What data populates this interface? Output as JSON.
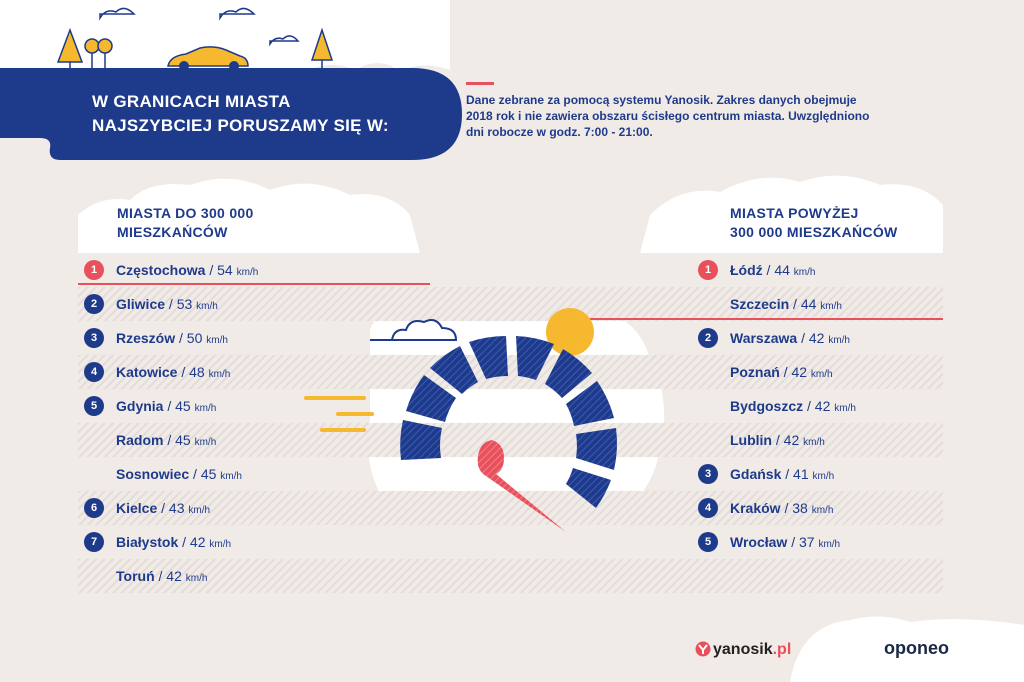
{
  "header": {
    "title_line1": "W GRANICACH MIASTA",
    "title_line2": "NAJSZYBCIEJ PORUSZAMY SIĘ W:",
    "note": "Dane zebrane za pomocą systemu Yanosik. Zakres danych obejmuje 2018 rok i nie zawiera obszaru ścisłego centrum miasta. Uwzględniono dni robocze w godz. 7:00 - 21:00."
  },
  "colors": {
    "navy": "#1e3a8a",
    "red": "#e8505b",
    "yellow": "#f5b82e",
    "background": "#f1ebe8"
  },
  "left_column": {
    "heading_line1": "MIASTA DO 300 000",
    "heading_line2": "MIESZKAŃCÓW",
    "rows": [
      {
        "rank": "1",
        "city": "Częstochowa",
        "value": "54",
        "unit": "km/h"
      },
      {
        "rank": "2",
        "city": "Gliwice",
        "value": "53",
        "unit": "km/h"
      },
      {
        "rank": "3",
        "city": "Rzeszów",
        "value": "50",
        "unit": "km/h"
      },
      {
        "rank": "4",
        "city": "Katowice",
        "value": "48",
        "unit": "km/h"
      },
      {
        "rank": "5",
        "city": "Gdynia",
        "value": "45",
        "unit": "km/h"
      },
      {
        "rank": "",
        "city": "Radom",
        "value": "45",
        "unit": "km/h"
      },
      {
        "rank": "",
        "city": "Sosnowiec",
        "value": "45",
        "unit": "km/h"
      },
      {
        "rank": "6",
        "city": "Kielce",
        "value": "43",
        "unit": "km/h"
      },
      {
        "rank": "7",
        "city": "Białystok",
        "value": "42",
        "unit": "km/h"
      },
      {
        "rank": "",
        "city": "Toruń",
        "value": "42",
        "unit": "km/h"
      }
    ]
  },
  "right_column": {
    "heading_line1": "MIASTA POWYŻEJ",
    "heading_line2": "300 000 MIESZKAŃCÓW",
    "rows": [
      {
        "rank": "1",
        "city": "Łódź",
        "value": "44",
        "unit": "km/h"
      },
      {
        "rank": "",
        "city": "Szczecin",
        "value": "44",
        "unit": "km/h"
      },
      {
        "rank": "2",
        "city": "Warszawa",
        "value": "42",
        "unit": "km/h"
      },
      {
        "rank": "",
        "city": "Poznań",
        "value": "42",
        "unit": "km/h"
      },
      {
        "rank": "",
        "city": "Bydgoszcz",
        "value": "42",
        "unit": "km/h"
      },
      {
        "rank": "",
        "city": "Lublin",
        "value": "42",
        "unit": "km/h"
      },
      {
        "rank": "3",
        "city": "Gdańsk",
        "value": "41",
        "unit": "km/h"
      },
      {
        "rank": "4",
        "city": "Kraków",
        "value": "38",
        "unit": "km/h"
      },
      {
        "rank": "5",
        "city": "Wrocław",
        "value": "37",
        "unit": "km/h"
      }
    ]
  },
  "footer": {
    "yanosik_name": "yanosik",
    "yanosik_tld": ".pl",
    "oponeo": "oponeo"
  }
}
